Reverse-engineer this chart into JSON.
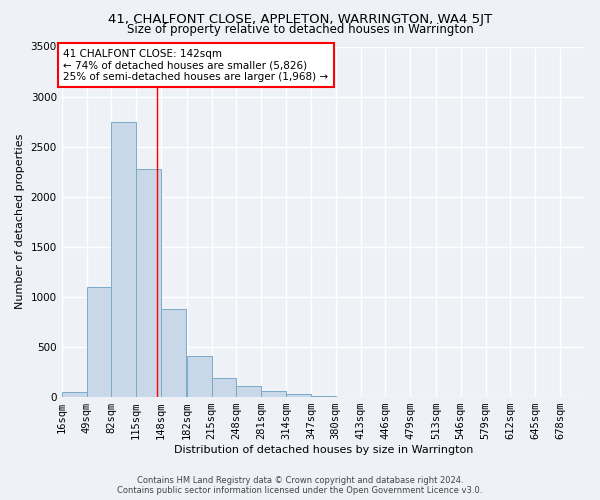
{
  "title": "41, CHALFONT CLOSE, APPLETON, WARRINGTON, WA4 5JT",
  "subtitle": "Size of property relative to detached houses in Warrington",
  "xlabel": "Distribution of detached houses by size in Warrington",
  "ylabel": "Number of detached properties",
  "footer_line1": "Contains HM Land Registry data © Crown copyright and database right 2024.",
  "footer_line2": "Contains public sector information licensed under the Open Government Licence v3.0.",
  "annotation_line1": "41 CHALFONT CLOSE: 142sqm",
  "annotation_line2": "← 74% of detached houses are smaller (5,826)",
  "annotation_line3": "25% of semi-detached houses are larger (1,968) →",
  "property_size": 142,
  "bar_color": "#c8d8e8",
  "bar_edge_color": "#7aaac8",
  "red_line_x": 142,
  "categories": [
    "16sqm",
    "49sqm",
    "82sqm",
    "115sqm",
    "148sqm",
    "182sqm",
    "215sqm",
    "248sqm",
    "281sqm",
    "314sqm",
    "347sqm",
    "380sqm",
    "413sqm",
    "446sqm",
    "479sqm",
    "513sqm",
    "546sqm",
    "579sqm",
    "612sqm",
    "645sqm",
    "678sqm"
  ],
  "bin_edges": [
    16,
    49,
    82,
    115,
    148,
    182,
    215,
    248,
    281,
    314,
    347,
    380,
    413,
    446,
    479,
    513,
    546,
    579,
    612,
    645,
    678,
    711
  ],
  "values": [
    50,
    1100,
    2750,
    2280,
    880,
    415,
    195,
    110,
    60,
    35,
    15,
    5,
    5,
    0,
    0,
    0,
    0,
    0,
    0,
    0,
    0
  ],
  "ylim": [
    0,
    3500
  ],
  "yticks": [
    0,
    500,
    1000,
    1500,
    2000,
    2500,
    3000,
    3500
  ],
  "background_color": "#eef2f7",
  "grid_color": "#ffffff",
  "title_fontsize": 9.5,
  "subtitle_fontsize": 8.5,
  "axis_label_fontsize": 8,
  "tick_fontsize": 7.5,
  "footer_fontsize": 6,
  "annotation_fontsize": 7.5
}
